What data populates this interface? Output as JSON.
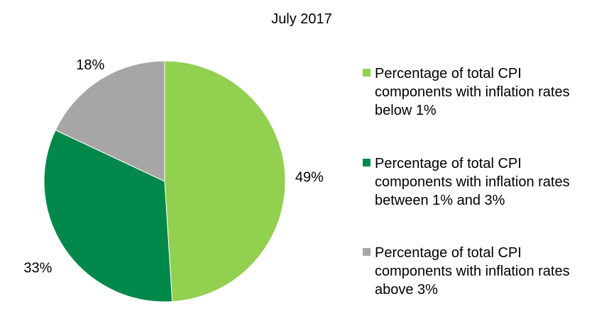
{
  "chart_data": {
    "type": "pie",
    "title": "July 2017",
    "slices": [
      {
        "label": "Percentage of total CPI components with inflation rates below 1%",
        "value": 49,
        "data_label": "49%",
        "color": "#92d050"
      },
      {
        "label": "Percentage of total CPI components with inflation rates between 1% and 3%",
        "value": 33,
        "data_label": "33%",
        "color": "#00884a"
      },
      {
        "label": "Percentage of total CPI components with inflation rates above 3%",
        "value": 18,
        "data_label": "18%",
        "color": "#a6a6a6"
      }
    ],
    "legend_position": "right",
    "start_angle": "top, clockwise"
  }
}
